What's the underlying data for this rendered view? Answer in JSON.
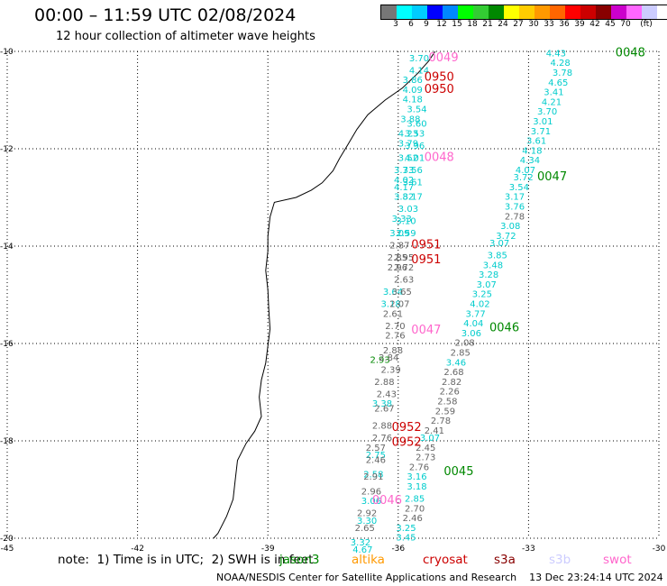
{
  "header": {
    "title": "00:00 – 11:59 UTC 02/08/2024",
    "subtitle": "12 hour collection of altimeter wave heights"
  },
  "colorbar": {
    "unit": "(ft)",
    "colors": [
      "#777777",
      "#00ffff",
      "#00ccff",
      "#0000ff",
      "#0088ff",
      "#00ff00",
      "#33cc33",
      "#008800",
      "#ffff00",
      "#ffcc00",
      "#ff9900",
      "#ff6600",
      "#ff0000",
      "#cc0000",
      "#880000",
      "#cc00cc",
      "#ff66ff",
      "#ccccff",
      "#ffffff",
      "#000000"
    ],
    "labels": [
      "3",
      "6",
      "9",
      "12",
      "15",
      "18",
      "21",
      "24",
      "27",
      "30",
      "33",
      "36",
      "39",
      "42",
      "45",
      "70"
    ]
  },
  "map": {
    "lon_range": [
      -45,
      -30
    ],
    "lat_range": [
      -20,
      -10
    ],
    "lon_ticks": [
      "-45",
      "-42",
      "-39",
      "-36",
      "-33",
      "-30"
    ],
    "lat_ticks": [
      "-10",
      "-12",
      "-14",
      "-16",
      "-18",
      "-20"
    ],
    "grid": "dotted"
  },
  "track_labels": [
    {
      "text": "0048",
      "color": "#008800",
      "lon": -31.0,
      "lat": -10.1
    },
    {
      "text": "0049",
      "color": "#ff66cc",
      "lon": -35.3,
      "lat": -10.2
    },
    {
      "text": "0950",
      "color": "#cc0000",
      "lon": -35.4,
      "lat": -10.6
    },
    {
      "text": "0950",
      "color": "#cc0000",
      "lon": -35.4,
      "lat": -10.85
    },
    {
      "text": "0048",
      "color": "#ff66cc",
      "lon": -35.4,
      "lat": -12.25
    },
    {
      "text": "0047",
      "color": "#008800",
      "lon": -32.8,
      "lat": -12.65
    },
    {
      "text": "0951",
      "color": "#cc0000",
      "lon": -35.7,
      "lat": -14.05
    },
    {
      "text": "0951",
      "color": "#cc0000",
      "lon": -35.7,
      "lat": -14.35
    },
    {
      "text": "0046",
      "color": "#008800",
      "lon": -33.9,
      "lat": -15.75
    },
    {
      "text": "0047",
      "color": "#ff66cc",
      "lon": -35.7,
      "lat": -15.8
    },
    {
      "text": "0952",
      "color": "#cc0000",
      "lon": -36.15,
      "lat": -17.8
    },
    {
      "text": "0952",
      "color": "#cc0000",
      "lon": -36.15,
      "lat": -18.1
    },
    {
      "text": "0045",
      "color": "#008800",
      "lon": -34.95,
      "lat": -18.7
    },
    {
      "text": "0046",
      "color": "#ff66cc",
      "lon": -36.6,
      "lat": -19.3
    }
  ],
  "wave_heights": [
    {
      "text": "4.43",
      "color": "#00cccc",
      "lon": -32.6,
      "lat": -10.1
    },
    {
      "text": "4.28",
      "color": "#00cccc",
      "lon": -32.5,
      "lat": -10.3
    },
    {
      "text": "3.78",
      "color": "#00cccc",
      "lon": -32.45,
      "lat": -10.5
    },
    {
      "text": "4.65",
      "color": "#00cccc",
      "lon": -32.55,
      "lat": -10.7
    },
    {
      "text": "3.41",
      "color": "#00cccc",
      "lon": -32.65,
      "lat": -10.9
    },
    {
      "text": "4.21",
      "color": "#00cccc",
      "lon": -32.7,
      "lat": -11.1
    },
    {
      "text": "3.70",
      "color": "#00cccc",
      "lon": -32.8,
      "lat": -11.3
    },
    {
      "text": "3.01",
      "color": "#00cccc",
      "lon": -32.9,
      "lat": -11.5
    },
    {
      "text": "3.71",
      "color": "#00cccc",
      "lon": -32.95,
      "lat": -11.7
    },
    {
      "text": "3.61",
      "color": "#00cccc",
      "lon": -33.05,
      "lat": -11.9
    },
    {
      "text": "4.18",
      "color": "#00cccc",
      "lon": -33.15,
      "lat": -12.1
    },
    {
      "text": "4.34",
      "color": "#00cccc",
      "lon": -33.2,
      "lat": -12.3
    },
    {
      "text": "4.07",
      "color": "#00cccc",
      "lon": -33.3,
      "lat": -12.5
    },
    {
      "text": "3.72",
      "color": "#00cccc",
      "lon": -33.35,
      "lat": -12.65
    },
    {
      "text": "3.54",
      "color": "#00cccc",
      "lon": -33.45,
      "lat": -12.85
    },
    {
      "text": "3.17",
      "color": "#00cccc",
      "lon": -33.55,
      "lat": -13.05
    },
    {
      "text": "3.76",
      "color": "#00cccc",
      "lon": -33.55,
      "lat": -13.25
    },
    {
      "text": "2.78",
      "color": "#666666",
      "lon": -33.55,
      "lat": -13.45
    },
    {
      "text": "3.08",
      "color": "#00cccc",
      "lon": -33.65,
      "lat": -13.65
    },
    {
      "text": "3.72",
      "color": "#00cccc",
      "lon": -33.75,
      "lat": -13.85
    },
    {
      "text": "3.07",
      "color": "#00cccc",
      "lon": -33.9,
      "lat": -14.0
    },
    {
      "text": "3.85",
      "color": "#00cccc",
      "lon": -33.95,
      "lat": -14.25
    },
    {
      "text": "3.48",
      "color": "#00cccc",
      "lon": -34.05,
      "lat": -14.45
    },
    {
      "text": "3.28",
      "color": "#00cccc",
      "lon": -34.15,
      "lat": -14.65
    },
    {
      "text": "3.07",
      "color": "#00cccc",
      "lon": -34.2,
      "lat": -14.85
    },
    {
      "text": "3.25",
      "color": "#00cccc",
      "lon": -34.3,
      "lat": -15.05
    },
    {
      "text": "4.02",
      "color": "#00cccc",
      "lon": -34.35,
      "lat": -15.25
    },
    {
      "text": "3.77",
      "color": "#00cccc",
      "lon": -34.45,
      "lat": -15.45
    },
    {
      "text": "4.04",
      "color": "#00cccc",
      "lon": -34.5,
      "lat": -15.65
    },
    {
      "text": "3.06",
      "color": "#00cccc",
      "lon": -34.55,
      "lat": -15.85
    },
    {
      "text": "2.08",
      "color": "#666666",
      "lon": -34.7,
      "lat": -16.05
    },
    {
      "text": "2.85",
      "color": "#666666",
      "lon": -34.8,
      "lat": -16.25
    },
    {
      "text": "3.46",
      "color": "#00cccc",
      "lon": -34.9,
      "lat": -16.45
    },
    {
      "text": "2.68",
      "color": "#666666",
      "lon": -34.95,
      "lat": -16.65
    },
    {
      "text": "2.82",
      "color": "#666666",
      "lon": -35.0,
      "lat": -16.85
    },
    {
      "text": "2.26",
      "color": "#666666",
      "lon": -35.05,
      "lat": -17.05
    },
    {
      "text": "2.58",
      "color": "#666666",
      "lon": -35.1,
      "lat": -17.25
    },
    {
      "text": "2.59",
      "color": "#666666",
      "lon": -35.15,
      "lat": -17.45
    },
    {
      "text": "2.78",
      "color": "#666666",
      "lon": -35.25,
      "lat": -17.65
    },
    {
      "text": "2.41",
      "color": "#666666",
      "lon": -35.4,
      "lat": -17.85
    },
    {
      "text": "3.07",
      "color": "#00cccc",
      "lon": -35.5,
      "lat": -18.0
    },
    {
      "text": "2.45",
      "color": "#666666",
      "lon": -35.6,
      "lat": -18.2
    },
    {
      "text": "2.73",
      "color": "#666666",
      "lon": -35.6,
      "lat": -18.4
    },
    {
      "text": "2.76",
      "color": "#666666",
      "lon": -35.75,
      "lat": -18.6
    },
    {
      "text": "3.16",
      "color": "#00cccc",
      "lon": -35.8,
      "lat": -18.8
    },
    {
      "text": "3.18",
      "color": "#00cccc",
      "lon": -35.8,
      "lat": -19.0
    },
    {
      "text": "2.85",
      "color": "#00cccc",
      "lon": -35.85,
      "lat": -19.25
    },
    {
      "text": "2.70",
      "color": "#666666",
      "lon": -35.85,
      "lat": -19.45
    },
    {
      "text": "2.46",
      "color": "#666666",
      "lon": -35.9,
      "lat": -19.65
    },
    {
      "text": "3.25",
      "color": "#00cccc",
      "lon": -36.05,
      "lat": -19.85
    },
    {
      "text": "3.45",
      "color": "#00cccc",
      "lon": -36.05,
      "lat": -20.05
    },
    {
      "text": "3.70",
      "color": "#00cccc",
      "lon": -35.75,
      "lat": -10.2
    },
    {
      "text": "4.14",
      "color": "#00cccc",
      "lon": -35.75,
      "lat": -10.45
    },
    {
      "text": "3.86",
      "color": "#00cccc",
      "lon": -35.9,
      "lat": -10.65
    },
    {
      "text": "4.09",
      "color": "#00cccc",
      "lon": -35.9,
      "lat": -10.85
    },
    {
      "text": "4.18",
      "color": "#00cccc",
      "lon": -35.9,
      "lat": -11.05
    },
    {
      "text": "3.54",
      "color": "#00cccc",
      "lon": -35.8,
      "lat": -11.25
    },
    {
      "text": "3.88",
      "color": "#00cccc",
      "lon": -35.95,
      "lat": -11.45
    },
    {
      "text": "3.60",
      "color": "#00cccc",
      "lon": -35.8,
      "lat": -11.55
    },
    {
      "text": "4.23",
      "color": "#00cccc",
      "lon": -36.0,
      "lat": -11.75
    },
    {
      "text": "3.53",
      "color": "#00cccc",
      "lon": -35.85,
      "lat": -11.75
    },
    {
      "text": "3.79",
      "color": "#00cccc",
      "lon": -36.0,
      "lat": -11.95
    },
    {
      "text": "3.96",
      "color": "#00cccc",
      "lon": -35.85,
      "lat": -12.0
    },
    {
      "text": "3.52",
      "color": "#00cccc",
      "lon": -36.0,
      "lat": -12.25
    },
    {
      "text": "4.01",
      "color": "#00cccc",
      "lon": -35.85,
      "lat": -12.25
    },
    {
      "text": "3.73",
      "color": "#00cccc",
      "lon": -36.1,
      "lat": -12.5
    },
    {
      "text": "3.56",
      "color": "#00cccc",
      "lon": -35.9,
      "lat": -12.5
    },
    {
      "text": "4.02",
      "color": "#00cccc",
      "lon": -36.1,
      "lat": -12.7
    },
    {
      "text": "3.61",
      "color": "#00cccc",
      "lon": -35.9,
      "lat": -12.75
    },
    {
      "text": "4.17",
      "color": "#00cccc",
      "lon": -36.1,
      "lat": -12.85
    },
    {
      "text": "3.82",
      "color": "#00cccc",
      "lon": -36.1,
      "lat": -13.05
    },
    {
      "text": "3.17",
      "color": "#00cccc",
      "lon": -35.9,
      "lat": -13.05
    },
    {
      "text": "3.03",
      "color": "#00cccc",
      "lon": -36.0,
      "lat": -13.3
    },
    {
      "text": "3.33",
      "color": "#00cccc",
      "lon": -36.15,
      "lat": -13.5
    },
    {
      "text": "3.10",
      "color": "#00cccc",
      "lon": -36.05,
      "lat": -13.55
    },
    {
      "text": "3.09",
      "color": "#00cccc",
      "lon": -36.2,
      "lat": -13.8
    },
    {
      "text": "2.59",
      "color": "#00cccc",
      "lon": -36.05,
      "lat": -13.8
    },
    {
      "text": "2.87",
      "color": "#666666",
      "lon": -36.2,
      "lat": -14.05
    },
    {
      "text": "2.85",
      "color": "#666666",
      "lon": -36.25,
      "lat": -14.3
    },
    {
      "text": "2.95",
      "color": "#666666",
      "lon": -36.1,
      "lat": -14.3
    },
    {
      "text": "2.96",
      "color": "#666666",
      "lon": -36.25,
      "lat": -14.5
    },
    {
      "text": "2.72",
      "color": "#666666",
      "lon": -36.1,
      "lat": -14.5
    },
    {
      "text": "2.63",
      "color": "#666666",
      "lon": -36.1,
      "lat": -14.75
    },
    {
      "text": "3.64",
      "color": "#00cccc",
      "lon": -36.35,
      "lat": -15.0
    },
    {
      "text": "3.65",
      "color": "#666666",
      "lon": -36.15,
      "lat": -15.0
    },
    {
      "text": "3.18",
      "color": "#00cccc",
      "lon": -36.4,
      "lat": -15.25
    },
    {
      "text": "2.07",
      "color": "#666666",
      "lon": -36.2,
      "lat": -15.25
    },
    {
      "text": "2.61",
      "color": "#666666",
      "lon": -36.35,
      "lat": -15.45
    },
    {
      "text": "2.70",
      "color": "#666666",
      "lon": -36.3,
      "lat": -15.7
    },
    {
      "text": "2.76",
      "color": "#666666",
      "lon": -36.3,
      "lat": -15.9
    },
    {
      "text": "2.88",
      "color": "#666666",
      "lon": -36.35,
      "lat": -16.2
    },
    {
      "text": "2.93",
      "color": "#008800",
      "lon": -36.65,
      "lat": -16.4
    },
    {
      "text": "2.84",
      "color": "#666666",
      "lon": -36.45,
      "lat": -16.35
    },
    {
      "text": "2.39",
      "color": "#666666",
      "lon": -36.4,
      "lat": -16.6
    },
    {
      "text": "2.88",
      "color": "#666666",
      "lon": -36.55,
      "lat": -16.85
    },
    {
      "text": "2.43",
      "color": "#666666",
      "lon": -36.5,
      "lat": -17.1
    },
    {
      "text": "3.38",
      "color": "#00cccc",
      "lon": -36.6,
      "lat": -17.3
    },
    {
      "text": "2.67",
      "color": "#666666",
      "lon": -36.55,
      "lat": -17.4
    },
    {
      "text": "2.88",
      "color": "#666666",
      "lon": -36.6,
      "lat": -17.75
    },
    {
      "text": "2.76",
      "color": "#666666",
      "lon": -36.6,
      "lat": -18.0
    },
    {
      "text": "2.57",
      "color": "#666666",
      "lon": -36.75,
      "lat": -18.2
    },
    {
      "text": "2.75",
      "color": "#00cccc",
      "lon": -36.75,
      "lat": -18.35
    },
    {
      "text": "2.46",
      "color": "#666666",
      "lon": -36.75,
      "lat": -18.45
    },
    {
      "text": "2.58",
      "color": "#00cccc",
      "lon": -36.8,
      "lat": -18.75
    },
    {
      "text": "2.91",
      "color": "#666666",
      "lon": -36.8,
      "lat": -18.8
    },
    {
      "text": "2.96",
      "color": "#666666",
      "lon": -36.85,
      "lat": -19.1
    },
    {
      "text": "3.06",
      "color": "#00cccc",
      "lon": -36.85,
      "lat": -19.3
    },
    {
      "text": "2.92",
      "color": "#666666",
      "lon": -36.95,
      "lat": -19.55
    },
    {
      "text": "3.30",
      "color": "#00cccc",
      "lon": -36.95,
      "lat": -19.7
    },
    {
      "text": "2.65",
      "color": "#666666",
      "lon": -37.0,
      "lat": -19.85
    },
    {
      "text": "3.32",
      "color": "#00cccc",
      "lon": -37.1,
      "lat": -20.15
    },
    {
      "text": "4.67",
      "color": "#00cccc",
      "lon": -37.05,
      "lat": -20.3
    }
  ],
  "footer": {
    "note": "note:  1) Time is in UTC;  2) SWH is in feet",
    "satellites": [
      {
        "name": "jason3",
        "color": "#008800"
      },
      {
        "name": "altika",
        "color": "#ff9900"
      },
      {
        "name": "cryosat",
        "color": "#cc0000"
      },
      {
        "name": "s3a",
        "color": "#880000"
      },
      {
        "name": "s3b",
        "color": "#ccccff"
      },
      {
        "name": "swot",
        "color": "#ff66cc"
      }
    ],
    "credit": "NOAA/NESDIS Center for Satellite Applications and Research    13 Dec 23:24:14 UTC 2024"
  }
}
